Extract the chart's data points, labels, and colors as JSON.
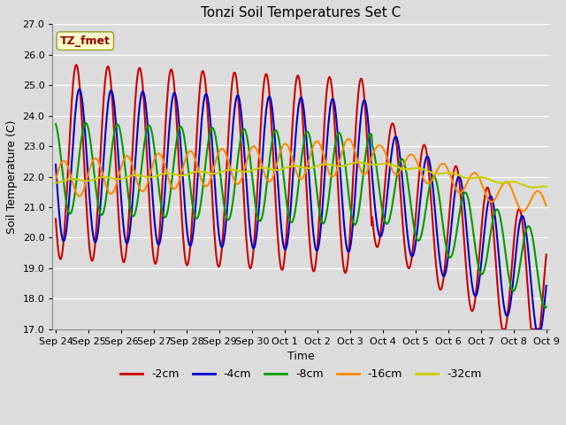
{
  "title": "Tonzi Soil Temperatures Set C",
  "xlabel": "Time",
  "ylabel": "Soil Temperature (C)",
  "annotation": "TZ_fmet",
  "ylim": [
    17.0,
    27.0
  ],
  "yticks": [
    17.0,
    18.0,
    19.0,
    20.0,
    21.0,
    22.0,
    23.0,
    24.0,
    25.0,
    26.0,
    27.0
  ],
  "xtick_labels": [
    "Sep 24",
    "Sep 25",
    "Sep 26",
    "Sep 27",
    "Sep 28",
    "Sep 29",
    "Sep 30",
    "Oct 1",
    "Oct 2",
    "Oct 3",
    "Oct 4",
    "Oct 5",
    "Oct 6",
    "Oct 7",
    "Oct 8",
    "Oct 9"
  ],
  "colors": {
    "-2cm": "#CC0000",
    "-4cm": "#0000CC",
    "-8cm": "#009900",
    "-16cm": "#FF8800",
    "-32cm": "#CCCC00"
  },
  "line_width": 1.5,
  "background_color": "#DCDCDC",
  "plot_bg_color": "#DCDCDC",
  "grid_color": "#FFFFFF",
  "figsize": [
    6.4,
    4.8
  ],
  "dpi": 100
}
